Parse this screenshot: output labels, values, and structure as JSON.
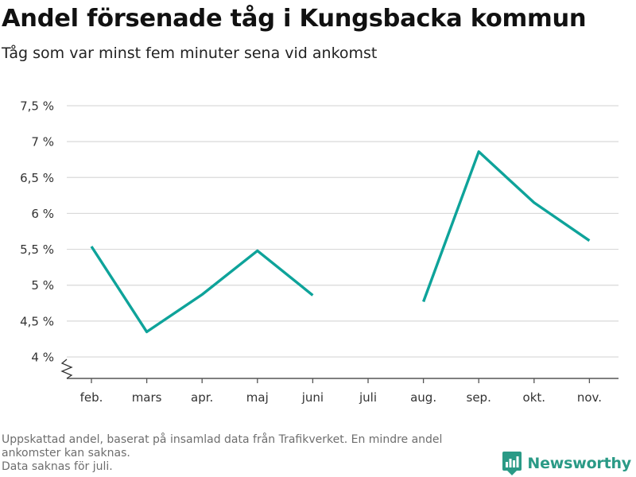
{
  "title": "Andel försenade tåg i Kungsbacka kommun",
  "subtitle": "Tåg som var minst fem minuter sena vid ankomst",
  "chart_data": {
    "type": "line",
    "categories": [
      "feb.",
      "mars",
      "apr.",
      "maj",
      "juni",
      "juli",
      "aug.",
      "sep.",
      "okt.",
      "nov."
    ],
    "values": [
      5.54,
      4.35,
      4.87,
      5.48,
      4.86,
      null,
      4.77,
      6.86,
      6.15,
      5.62
    ],
    "y_ticks": [
      4,
      4.5,
      5,
      5.5,
      6,
      6.5,
      7,
      7.5
    ],
    "y_tick_labels": [
      "4 %",
      "4,5 %",
      "5 %",
      "5,5 %",
      "6 %",
      "6,5 %",
      "7 %",
      "7,5 %"
    ],
    "ylim": [
      4,
      7.5
    ],
    "y_axis_break": true,
    "grid": true,
    "line_color": "#0ea39a",
    "xlabel": "",
    "ylabel": ""
  },
  "footnote": {
    "line1": "Uppskattad andel, baserat på insamlad data från Trafikverket. En mindre andel",
    "line2": "ankomster kan saknas.",
    "line3": "Data saknas för juli."
  },
  "brand": {
    "name": "Newsworthy",
    "color": "#2a9a86",
    "icon": "newsworthy-logo-icon"
  }
}
